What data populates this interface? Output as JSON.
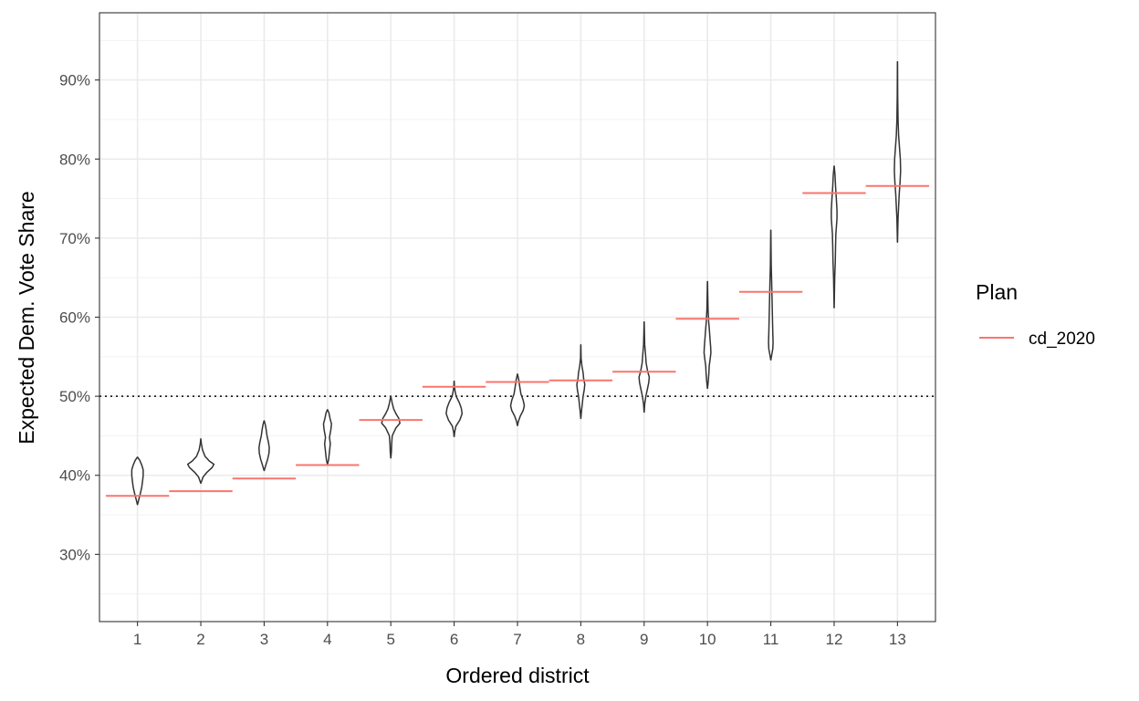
{
  "chart_data": {
    "type": "violin",
    "xlabel": "Ordered district",
    "ylabel": "Expected Dem. Vote Share",
    "categories": [
      "1",
      "2",
      "3",
      "4",
      "5",
      "6",
      "7",
      "8",
      "9",
      "10",
      "11",
      "12",
      "13"
    ],
    "ylim": [
      0.215,
      0.985
    ],
    "y_ticks": [
      0.3,
      0.4,
      0.5,
      0.6,
      0.7,
      0.8,
      0.9
    ],
    "y_tick_labels": [
      "30%",
      "40%",
      "50%",
      "60%",
      "70%",
      "80%",
      "90%"
    ],
    "reference_line": {
      "y": 0.5,
      "style": "dotted"
    },
    "grid": true,
    "legend": {
      "title": "Plan",
      "position": "right",
      "entries": [
        {
          "label": "cd_2020",
          "color": "#f8766d"
        }
      ]
    },
    "series": [
      {
        "name": "cd_2020",
        "color": "#f8766d",
        "values": [
          0.374,
          0.38,
          0.396,
          0.413,
          0.47,
          0.512,
          0.518,
          0.52,
          0.531,
          0.598,
          0.632,
          0.757,
          0.766
        ]
      }
    ],
    "violins": [
      {
        "district": "1",
        "profile": [
          [
            0.363,
            0.002
          ],
          [
            0.37,
            0.05
          ],
          [
            0.377,
            0.1
          ],
          [
            0.385,
            0.15
          ],
          [
            0.393,
            0.18
          ],
          [
            0.4,
            0.2
          ],
          [
            0.407,
            0.2
          ],
          [
            0.413,
            0.15
          ],
          [
            0.419,
            0.08
          ],
          [
            0.423,
            0.002
          ]
        ]
      },
      {
        "district": "2",
        "profile": [
          [
            0.39,
            0.002
          ],
          [
            0.398,
            0.08
          ],
          [
            0.404,
            0.22
          ],
          [
            0.41,
            0.4
          ],
          [
            0.414,
            0.46
          ],
          [
            0.418,
            0.3
          ],
          [
            0.424,
            0.15
          ],
          [
            0.432,
            0.06
          ],
          [
            0.44,
            0.02
          ],
          [
            0.446,
            0.002
          ]
        ]
      },
      {
        "district": "3",
        "profile": [
          [
            0.406,
            0.002
          ],
          [
            0.412,
            0.05
          ],
          [
            0.42,
            0.12
          ],
          [
            0.428,
            0.17
          ],
          [
            0.435,
            0.18
          ],
          [
            0.442,
            0.15
          ],
          [
            0.45,
            0.1
          ],
          [
            0.458,
            0.07
          ],
          [
            0.464,
            0.04
          ],
          [
            0.469,
            0.002
          ]
        ]
      },
      {
        "district": "4",
        "profile": [
          [
            0.414,
            0.002
          ],
          [
            0.42,
            0.04
          ],
          [
            0.43,
            0.07
          ],
          [
            0.44,
            0.1
          ],
          [
            0.448,
            0.07
          ],
          [
            0.458,
            0.12
          ],
          [
            0.465,
            0.14
          ],
          [
            0.472,
            0.09
          ],
          [
            0.479,
            0.05
          ],
          [
            0.483,
            0.002
          ]
        ]
      },
      {
        "district": "5",
        "profile": [
          [
            0.422,
            0.002
          ],
          [
            0.43,
            0.02
          ],
          [
            0.44,
            0.03
          ],
          [
            0.45,
            0.05
          ],
          [
            0.46,
            0.18
          ],
          [
            0.466,
            0.32
          ],
          [
            0.472,
            0.28
          ],
          [
            0.478,
            0.18
          ],
          [
            0.484,
            0.1
          ],
          [
            0.491,
            0.05
          ],
          [
            0.5,
            0.002
          ]
        ]
      },
      {
        "district": "6",
        "profile": [
          [
            0.449,
            0.002
          ],
          [
            0.455,
            0.02
          ],
          [
            0.462,
            0.06
          ],
          [
            0.47,
            0.2
          ],
          [
            0.478,
            0.28
          ],
          [
            0.485,
            0.25
          ],
          [
            0.492,
            0.18
          ],
          [
            0.5,
            0.07
          ],
          [
            0.507,
            0.03
          ],
          [
            0.513,
            0.01
          ],
          [
            0.519,
            0.002
          ]
        ]
      },
      {
        "district": "7",
        "profile": [
          [
            0.463,
            0.002
          ],
          [
            0.468,
            0.03
          ],
          [
            0.475,
            0.1
          ],
          [
            0.482,
            0.2
          ],
          [
            0.488,
            0.24
          ],
          [
            0.495,
            0.2
          ],
          [
            0.503,
            0.12
          ],
          [
            0.512,
            0.08
          ],
          [
            0.52,
            0.05
          ],
          [
            0.528,
            0.002
          ]
        ]
      },
      {
        "district": "8",
        "profile": [
          [
            0.472,
            0.002
          ],
          [
            0.48,
            0.02
          ],
          [
            0.49,
            0.05
          ],
          [
            0.5,
            0.08
          ],
          [
            0.508,
            0.12
          ],
          [
            0.515,
            0.14
          ],
          [
            0.522,
            0.1
          ],
          [
            0.53,
            0.08
          ],
          [
            0.538,
            0.04
          ],
          [
            0.548,
            0.01
          ],
          [
            0.565,
            0.002
          ]
        ]
      },
      {
        "district": "9",
        "profile": [
          [
            0.48,
            0.002
          ],
          [
            0.49,
            0.02
          ],
          [
            0.5,
            0.06
          ],
          [
            0.51,
            0.12
          ],
          [
            0.517,
            0.16
          ],
          [
            0.524,
            0.18
          ],
          [
            0.532,
            0.12
          ],
          [
            0.542,
            0.07
          ],
          [
            0.552,
            0.05
          ],
          [
            0.565,
            0.02
          ],
          [
            0.58,
            0.01
          ],
          [
            0.594,
            0.002
          ]
        ]
      },
      {
        "district": "10",
        "profile": [
          [
            0.51,
            0.002
          ],
          [
            0.52,
            0.03
          ],
          [
            0.53,
            0.05
          ],
          [
            0.538,
            0.06
          ],
          [
            0.546,
            0.09
          ],
          [
            0.555,
            0.12
          ],
          [
            0.563,
            0.11
          ],
          [
            0.572,
            0.09
          ],
          [
            0.582,
            0.07
          ],
          [
            0.595,
            0.04
          ],
          [
            0.61,
            0.02
          ],
          [
            0.628,
            0.01
          ],
          [
            0.645,
            0.002
          ]
        ]
      },
      {
        "district": "11",
        "profile": [
          [
            0.546,
            0.002
          ],
          [
            0.552,
            0.03
          ],
          [
            0.56,
            0.07
          ],
          [
            0.568,
            0.08
          ],
          [
            0.58,
            0.07
          ],
          [
            0.595,
            0.06
          ],
          [
            0.612,
            0.05
          ],
          [
            0.628,
            0.04
          ],
          [
            0.645,
            0.03
          ],
          [
            0.665,
            0.015
          ],
          [
            0.688,
            0.008
          ],
          [
            0.71,
            0.002
          ]
        ]
      },
      {
        "district": "12",
        "profile": [
          [
            0.612,
            0.002
          ],
          [
            0.63,
            0.01
          ],
          [
            0.65,
            0.02
          ],
          [
            0.67,
            0.04
          ],
          [
            0.69,
            0.05
          ],
          [
            0.705,
            0.06
          ],
          [
            0.715,
            0.08
          ],
          [
            0.725,
            0.1
          ],
          [
            0.735,
            0.1
          ],
          [
            0.748,
            0.08
          ],
          [
            0.765,
            0.05
          ],
          [
            0.78,
            0.03
          ],
          [
            0.791,
            0.002
          ]
        ]
      },
      {
        "district": "13",
        "profile": [
          [
            0.695,
            0.002
          ],
          [
            0.71,
            0.01
          ],
          [
            0.725,
            0.02
          ],
          [
            0.74,
            0.04
          ],
          [
            0.755,
            0.06
          ],
          [
            0.77,
            0.09
          ],
          [
            0.785,
            0.11
          ],
          [
            0.8,
            0.1
          ],
          [
            0.815,
            0.07
          ],
          [
            0.83,
            0.04
          ],
          [
            0.85,
            0.02
          ],
          [
            0.88,
            0.008
          ],
          [
            0.923,
            0.002
          ]
        ]
      }
    ]
  }
}
